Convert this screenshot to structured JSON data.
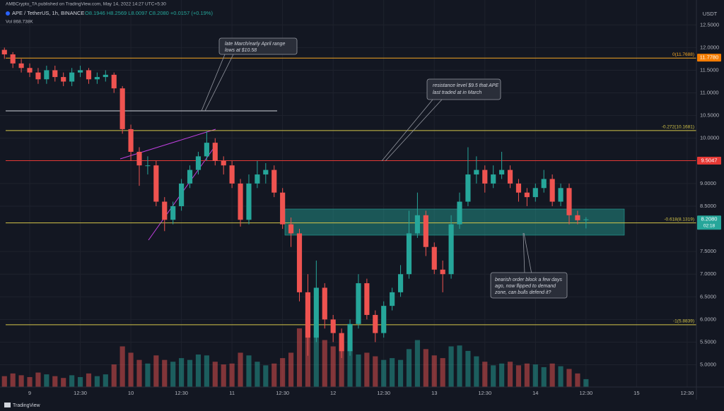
{
  "chart_data": {
    "type": "candlestick",
    "publisher": "AMBCrypto_TA published on TradingView.com, May 14, 2022 14:27 UTC+5:30",
    "title": "APE / TetherUS, 1h, BINANCE",
    "ohlc": "O8.1946 H8.2569 L8.0097 C8.2080 +0.0157 (+0.19%)",
    "volume_label": "Vol 868.738K",
    "currency": "USDT",
    "footer": "TradingView",
    "up_color": "#26a69a",
    "down_color": "#ef5350",
    "grid": true,
    "x": [
      -6,
      -4,
      -2,
      0,
      2,
      4,
      6,
      8,
      10,
      12,
      14,
      16,
      18,
      20,
      22,
      24,
      26,
      28,
      30,
      32,
      34,
      36,
      38,
      40,
      42,
      44,
      46,
      48,
      50,
      52,
      54,
      56,
      58,
      60,
      62,
      64,
      66,
      68,
      70,
      72,
      74,
      76,
      78,
      80,
      82,
      84,
      86,
      88,
      90,
      92,
      94,
      96,
      98,
      100,
      102,
      104,
      106,
      108,
      110,
      112,
      114,
      116,
      118,
      120,
      122,
      124,
      126,
      128,
      130,
      132
    ],
    "open": [
      11.95,
      11.85,
      11.65,
      11.55,
      11.45,
      11.3,
      11.5,
      11.35,
      11.25,
      11.45,
      11.5,
      11.3,
      11.35,
      11.4,
      11.1,
      10.2,
      9.7,
      9.4,
      9.4,
      8.6,
      8.2,
      8.5,
      9.0,
      9.3,
      9.6,
      9.9,
      9.5,
      9.4,
      9.0,
      8.2,
      9.0,
      9.2,
      9.3,
      8.8,
      8.1,
      7.9,
      6.6,
      5.6,
      6.7,
      6.0,
      5.7,
      5.3,
      5.9,
      6.8,
      6.1,
      5.7,
      6.3,
      6.6,
      7.0,
      7.9,
      8.3,
      7.6,
      7.1,
      7.0,
      8.1,
      8.6,
      9.2,
      9.3,
      9.0,
      9.2,
      9.3,
      9.0,
      8.8,
      8.7,
      8.9,
      9.1,
      8.6,
      8.9,
      8.3,
      8.1946
    ],
    "high": [
      12.0,
      11.9,
      11.75,
      11.65,
      11.55,
      11.6,
      11.6,
      11.45,
      11.55,
      11.6,
      11.55,
      11.45,
      11.5,
      11.45,
      11.15,
      10.3,
      9.8,
      9.6,
      9.5,
      8.7,
      8.6,
      9.1,
      9.4,
      9.7,
      10.15,
      10.0,
      9.6,
      9.5,
      9.1,
      9.2,
      9.5,
      9.45,
      9.4,
      8.9,
      8.25,
      8.0,
      7.0,
      7.3,
      6.8,
      6.1,
      5.8,
      6.0,
      7.0,
      6.9,
      6.2,
      6.4,
      6.7,
      7.2,
      8.4,
      8.8,
      8.4,
      7.7,
      7.3,
      8.3,
      8.8,
      9.8,
      9.6,
      9.4,
      9.4,
      9.7,
      9.4,
      9.1,
      8.9,
      9.0,
      9.3,
      9.2,
      9.0,
      9.0,
      8.4,
      8.2569
    ],
    "low": [
      11.75,
      11.55,
      11.45,
      11.35,
      11.2,
      11.2,
      11.25,
      11.15,
      11.15,
      11.35,
      11.2,
      11.2,
      11.25,
      11.0,
      10.1,
      9.5,
      8.95,
      9.2,
      8.5,
      7.95,
      8.1,
      8.4,
      8.9,
      9.2,
      9.5,
      9.4,
      9.2,
      8.9,
      8.05,
      8.1,
      8.9,
      9.0,
      8.7,
      8.0,
      7.6,
      6.4,
      5.2,
      5.5,
      5.8,
      5.5,
      5.15,
      5.2,
      5.8,
      6.0,
      5.5,
      5.6,
      6.2,
      6.5,
      6.9,
      7.8,
      7.4,
      7.0,
      6.6,
      6.9,
      8.0,
      8.5,
      9.0,
      8.8,
      8.9,
      9.1,
      8.9,
      8.6,
      8.5,
      8.6,
      8.8,
      8.5,
      8.5,
      8.1,
      8.1,
      8.0097
    ],
    "close": [
      11.85,
      11.65,
      11.55,
      11.45,
      11.3,
      11.5,
      11.35,
      11.25,
      11.45,
      11.5,
      11.3,
      11.35,
      11.4,
      11.1,
      10.2,
      9.7,
      9.4,
      9.4,
      8.6,
      8.2,
      8.5,
      9.0,
      9.3,
      9.6,
      9.9,
      9.5,
      9.4,
      9.0,
      8.2,
      9.0,
      9.2,
      9.3,
      8.8,
      8.1,
      7.9,
      6.6,
      5.6,
      6.7,
      6.0,
      5.7,
      5.3,
      5.9,
      6.8,
      6.1,
      5.7,
      6.3,
      6.6,
      7.0,
      7.9,
      8.3,
      7.6,
      7.1,
      7.0,
      8.1,
      8.6,
      9.2,
      9.3,
      9.0,
      9.2,
      9.3,
      9.0,
      8.8,
      8.7,
      8.9,
      9.1,
      8.6,
      8.9,
      8.3,
      8.19,
      8.208
    ],
    "volume": [
      1200,
      1500,
      1300,
      1100,
      1600,
      1400,
      1200,
      1000,
      1300,
      1100,
      1500,
      1200,
      1400,
      2500,
      4500,
      3800,
      3000,
      2600,
      3500,
      3000,
      2800,
      3200,
      3000,
      3600,
      3500,
      2800,
      2500,
      2600,
      3800,
      3500,
      2800,
      2400,
      2600,
      3200,
      3800,
      6500,
      8200,
      6000,
      5200,
      4500,
      4800,
      4200,
      3600,
      3800,
      3400,
      3000,
      3200,
      3000,
      4200,
      5200,
      4200,
      3500,
      3200,
      4500,
      4600,
      4000,
      3400,
      2800,
      2400,
      2600,
      2800,
      2400,
      2600,
      2500,
      2200,
      2600,
      2300,
      2000,
      1500,
      868.738
    ],
    "volume_lim": [
      0,
      9000
    ],
    "xlim": [
      -7.05,
      158.2
    ],
    "xticks": [
      {
        "value": 0,
        "label": "9"
      },
      {
        "value": 12,
        "label": "12:30"
      },
      {
        "value": 24,
        "label": "10"
      },
      {
        "value": 36,
        "label": "12:30"
      },
      {
        "value": 48,
        "label": "11"
      },
      {
        "value": 60,
        "label": "12:30"
      },
      {
        "value": 72,
        "label": "12"
      },
      {
        "value": 84,
        "label": "12:30"
      },
      {
        "value": 96,
        "label": "13"
      },
      {
        "value": 108,
        "label": "12:30"
      },
      {
        "value": 120,
        "label": "14"
      },
      {
        "value": 132,
        "label": "12:30"
      },
      {
        "value": 144,
        "label": "15"
      },
      {
        "value": 156,
        "label": "12:30"
      }
    ],
    "ylim": [
      4.51,
      13.05
    ],
    "yticks": [
      {
        "value": 12.5,
        "label": "12.5000"
      },
      {
        "value": 12,
        "label": "12.0000"
      },
      {
        "value": 11.5,
        "label": "11.5000"
      },
      {
        "value": 11,
        "label": "11.0000"
      },
      {
        "value": 10.5,
        "label": "10.5000"
      },
      {
        "value": 10,
        "label": "10.0000"
      },
      {
        "value": 9,
        "label": "9.0000"
      },
      {
        "value": 8.5,
        "label": "8.5000"
      },
      {
        "value": 7.5,
        "label": "7.5000"
      },
      {
        "value": 7,
        "label": "7.0000"
      },
      {
        "value": 6.5,
        "label": "6.5000"
      },
      {
        "value": 6,
        "label": "6.0000"
      },
      {
        "value": 5.5,
        "label": "5.5000"
      },
      {
        "value": 5,
        "label": "5.0000"
      }
    ],
    "fib_levels": [
      {
        "value": 11.7688,
        "label": "0(11.7688)",
        "color": "#f5a623"
      },
      {
        "value": 10.1681,
        "label": "-0.272(10.1681)",
        "color": "#d4c548"
      },
      {
        "value": 8.1319,
        "label": "-0.618(8.1319)",
        "color": "#d4c548"
      },
      {
        "value": 5.8839,
        "label": "-1(5.8839)",
        "color": "#d4c548"
      }
    ],
    "price_labels": [
      {
        "value": 11.778,
        "label": "11.7780",
        "color": "#f57c00"
      },
      {
        "value": 9.5047,
        "label": "9.5047",
        "color": "#e53935"
      },
      {
        "value": 8.208,
        "label": "8.2080",
        "color": "#26a69a",
        "countdown": "02:18"
      }
    ],
    "annotations": [
      {
        "lines": [
          "late March/early April range",
          "lows at $10.58"
        ]
      },
      {
        "lines": [
          "resistance level $9.5 that APE",
          "last traded at in March"
        ]
      },
      {
        "lines": [
          "bearish order block a few days",
          "ago, now flipped to demand",
          "zone, can bulls defend it?"
        ]
      }
    ]
  }
}
